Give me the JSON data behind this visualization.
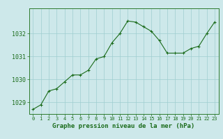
{
  "x": [
    0,
    1,
    2,
    3,
    4,
    5,
    6,
    7,
    8,
    9,
    10,
    11,
    12,
    13,
    14,
    15,
    16,
    17,
    18,
    19,
    20,
    21,
    22,
    23
  ],
  "y": [
    1028.7,
    1028.9,
    1029.5,
    1029.6,
    1029.9,
    1030.2,
    1030.2,
    1030.4,
    1030.9,
    1031.0,
    1031.6,
    1032.0,
    1032.55,
    1032.5,
    1032.3,
    1032.1,
    1031.7,
    1031.15,
    1031.15,
    1031.15,
    1031.35,
    1031.45,
    1032.0,
    1032.5
  ],
  "line_color": "#1a6b1a",
  "marker_color": "#1a6b1a",
  "bg_color": "#cde8ea",
  "grid_color": "#9fcdd0",
  "axis_color": "#2d7a2d",
  "tick_label_color": "#1a6b1a",
  "xlabel": "Graphe pression niveau de la mer (hPa)",
  "xlabel_color": "#1a6b1a",
  "ylim": [
    1028.5,
    1033.1
  ],
  "yticks": [
    1029,
    1030,
    1031,
    1032
  ],
  "xticks": [
    0,
    1,
    2,
    3,
    4,
    5,
    6,
    7,
    8,
    9,
    10,
    11,
    12,
    13,
    14,
    15,
    16,
    17,
    18,
    19,
    20,
    21,
    22,
    23
  ],
  "xlabel_fontsize": 6.5,
  "tick_fontsize": 6,
  "xtick_fontsize": 5
}
